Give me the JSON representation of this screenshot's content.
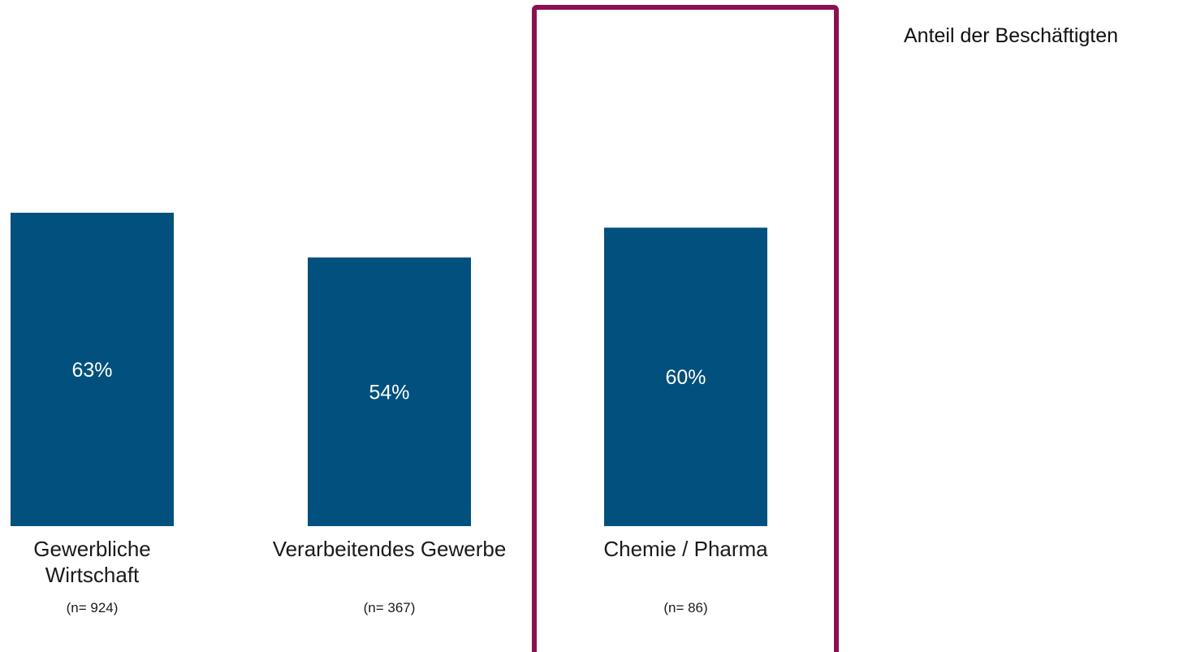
{
  "legend_label": "Anteil der Beschäftigten",
  "colors": {
    "bar": "#02507d",
    "highlight_frame": "#8b1151",
    "label_text": "#1a1a1a",
    "value_text": "#ffffff"
  },
  "chart_data": {
    "type": "bar",
    "categories": [
      [
        "Gewerbliche",
        "Wirtschaft"
      ],
      [
        "Verarbeitendes Gewerbe"
      ],
      [
        "Chemie / Pharma"
      ]
    ],
    "sample_sizes": [
      "(n= 924)",
      "(n= 367)",
      "(n= 86)"
    ],
    "series": [
      {
        "name": "Anteil der Beschäftigten",
        "values": [
          63,
          54,
          60
        ],
        "value_labels": [
          "63%",
          "54%",
          "60%"
        ]
      }
    ],
    "highlighted_category": "Chemie / Pharma",
    "ylim": [
      0,
      100
    ],
    "unit": "%",
    "legend_position": "top-right",
    "grid": false
  }
}
